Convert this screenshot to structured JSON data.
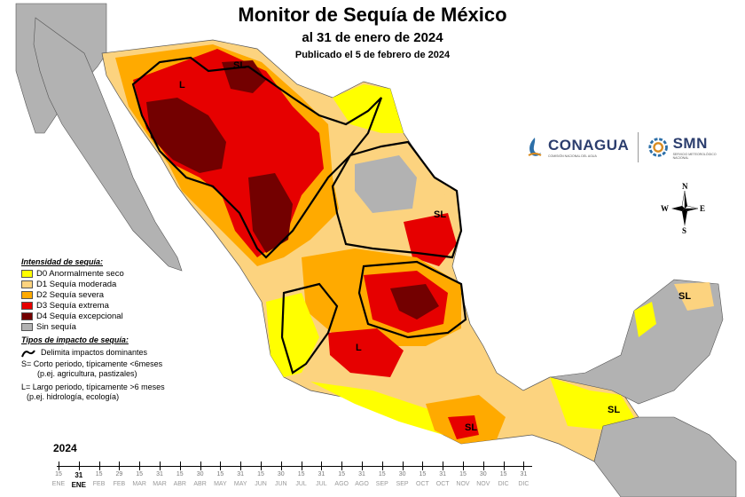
{
  "header": {
    "title": "Monitor de Sequía de México",
    "subtitle": "al 31 de enero de 2024",
    "published": "Publicado el 5 de febrero de 2024"
  },
  "logos": {
    "conagua_name": "CONAGUA",
    "conagua_sub": "COMISIÓN NACIONAL DEL AGUA",
    "smn_name": "SMN",
    "smn_sub": "SERVICIO METEOROLÓGICO NACIONAL"
  },
  "compass": {
    "n": "N",
    "s": "S",
    "e": "E",
    "w": "W"
  },
  "colors": {
    "d0": "#ffff00",
    "d1": "#fcd37f",
    "d2": "#ffaa00",
    "d3": "#e60000",
    "d4": "#730000",
    "none": "#b2b2b2",
    "sea": "#ffffff",
    "land_other": "#ffffff"
  },
  "legend": {
    "heading": "Intensidad de sequía:",
    "items": [
      {
        "label": "D0 Anormalmente seco",
        "color": "#ffff00"
      },
      {
        "label": "D1 Sequía moderada",
        "color": "#fcd37f"
      },
      {
        "label": "D2 Sequía severa",
        "color": "#ffaa00"
      },
      {
        "label": "D3 Sequía extrema",
        "color": "#e60000"
      },
      {
        "label": "D4 Sequía excepcional",
        "color": "#730000"
      },
      {
        "label": "Sin sequía",
        "color": "#b2b2b2"
      }
    ],
    "impact_heading": "Tipos de impacto de sequía:",
    "impact_line": "Delimita impactos dominantes",
    "impact_s_1": "S= Corto periodo, típicamente <6meses",
    "impact_s_2": "(p.ej. agricultura, pastizales)",
    "impact_l_1": "L= Largo periodo, típicamente >6 meses",
    "impact_l_2": "(p.ej. hidrología, ecología)"
  },
  "map_labels": {
    "sl_north": "SL",
    "l_northwest": "L",
    "sl_northeast": "SL",
    "l_central": "L",
    "sl_south": "SL",
    "sl_southeast": "SL",
    "sl_yucatan": "SL"
  },
  "timeline": {
    "year": "2024",
    "ticks": [
      {
        "num": "15",
        "month": "ENE"
      },
      {
        "num": "31",
        "month": "ENE",
        "current": true
      },
      {
        "num": "15",
        "month": "FEB"
      },
      {
        "num": "29",
        "month": "FEB"
      },
      {
        "num": "15",
        "month": "MAR"
      },
      {
        "num": "31",
        "month": "MAR"
      },
      {
        "num": "15",
        "month": "ABR"
      },
      {
        "num": "30",
        "month": "ABR"
      },
      {
        "num": "15",
        "month": "MAY"
      },
      {
        "num": "31",
        "month": "MAY"
      },
      {
        "num": "15",
        "month": "JUN"
      },
      {
        "num": "30",
        "month": "JUN"
      },
      {
        "num": "15",
        "month": "JUL"
      },
      {
        "num": "31",
        "month": "JUL"
      },
      {
        "num": "15",
        "month": "AGO"
      },
      {
        "num": "31",
        "month": "AGO"
      },
      {
        "num": "15",
        "month": "SEP"
      },
      {
        "num": "30",
        "month": "SEP"
      },
      {
        "num": "15",
        "month": "OCT"
      },
      {
        "num": "31",
        "month": "OCT"
      },
      {
        "num": "15",
        "month": "NOV"
      },
      {
        "num": "30",
        "month": "NOV"
      },
      {
        "num": "15",
        "month": "DIC"
      },
      {
        "num": "31",
        "month": "DIC"
      }
    ]
  }
}
